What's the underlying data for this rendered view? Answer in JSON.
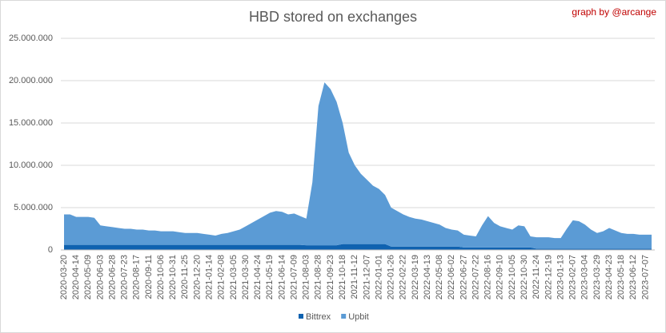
{
  "chart_data": {
    "type": "stacked_area",
    "title": "HBD stored on exchanges",
    "annotation": "graph by @arcange",
    "categories": [
      "2020-03-20",
      null,
      "2020-04-14",
      null,
      "2020-05-09",
      null,
      "2020-06-03",
      null,
      "2020-06-28",
      null,
      "2020-07-23",
      null,
      "2020-08-17",
      null,
      "2020-09-11",
      null,
      "2020-10-06",
      null,
      "2020-10-31",
      null,
      "2020-11-25",
      null,
      "2020-12-20",
      null,
      "2021-01-14",
      null,
      "2021-02-08",
      null,
      "2021-03-05",
      null,
      "2021-03-30",
      null,
      "2021-04-24",
      null,
      "2021-05-19",
      null,
      "2021-06-14",
      null,
      "2021-07-09",
      null,
      "2021-08-03",
      null,
      "2021-08-28",
      null,
      "2021-09-23",
      null,
      "2021-10-18",
      null,
      "2021-11-12",
      null,
      "2021-12-07",
      null,
      "2022-01-01",
      null,
      "2022-01-26",
      null,
      "2022-02-22",
      null,
      "2022-03-19",
      null,
      "2022-04-13",
      null,
      "2022-05-08",
      null,
      "2022-06-02",
      null,
      "2022-06-27",
      null,
      "2022-07-22",
      null,
      "2022-08-16",
      null,
      "2022-09-10",
      null,
      "2022-10-05",
      null,
      "2022-10-30",
      null,
      "2022-11-24",
      null,
      "2022-12-19",
      null,
      "2023-01-13",
      null,
      "2023-02-07",
      null,
      "2023-03-04",
      null,
      "2023-03-29",
      null,
      "2023-04-23",
      null,
      "2023-05-18",
      null,
      "2023-06-12",
      null,
      "2023-07-07",
      null
    ],
    "series": [
      {
        "name": "Bittrex",
        "color": "#0f62b0",
        "values": [
          600000,
          600000,
          600000,
          600000,
          600000,
          600000,
          600000,
          600000,
          600000,
          600000,
          600000,
          600000,
          600000,
          600000,
          600000,
          600000,
          600000,
          600000,
          600000,
          600000,
          600000,
          600000,
          600000,
          600000,
          600000,
          600000,
          600000,
          600000,
          600000,
          600000,
          600000,
          600000,
          600000,
          600000,
          600000,
          600000,
          600000,
          600000,
          600000,
          600000,
          550000,
          550000,
          550000,
          550000,
          550000,
          550000,
          700000,
          700000,
          700000,
          700000,
          700000,
          700000,
          700000,
          700000,
          400000,
          400000,
          400000,
          400000,
          400000,
          400000,
          400000,
          400000,
          400000,
          400000,
          400000,
          400000,
          300000,
          300000,
          300000,
          300000,
          300000,
          300000,
          300000,
          300000,
          300000,
          300000,
          300000,
          300000,
          150000,
          150000,
          150000,
          150000,
          150000,
          150000,
          150000,
          150000,
          150000,
          150000,
          150000,
          150000,
          150000,
          150000,
          150000,
          150000,
          150000,
          150000,
          150000,
          150000
        ]
      },
      {
        "name": "Upbit",
        "color": "#5b9bd5",
        "values": [
          3600000,
          3600000,
          3300000,
          3300000,
          3300000,
          3200000,
          2300000,
          2200000,
          2100000,
          2000000,
          1900000,
          1900000,
          1800000,
          1800000,
          1700000,
          1700000,
          1600000,
          1600000,
          1600000,
          1500000,
          1400000,
          1400000,
          1400000,
          1300000,
          1200000,
          1100000,
          1300000,
          1400000,
          1600000,
          1800000,
          2200000,
          2600000,
          3000000,
          3400000,
          3800000,
          4000000,
          3900000,
          3600000,
          3700000,
          3400000,
          3150000,
          7450000,
          16450000,
          19250000,
          18450000,
          16950000,
          14300000,
          10800000,
          9300000,
          8300000,
          7600000,
          6900000,
          6500000,
          5800000,
          4600000,
          4200000,
          3800000,
          3500000,
          3300000,
          3200000,
          3000000,
          2800000,
          2600000,
          2200000,
          2000000,
          1900000,
          1500000,
          1400000,
          1300000,
          2600000,
          3700000,
          2900000,
          2500000,
          2300000,
          2100000,
          2600000,
          2500000,
          1300000,
          1350000,
          1350000,
          1350000,
          1250000,
          1250000,
          2350000,
          3350000,
          3250000,
          2850000,
          2250000,
          1850000,
          2050000,
          2450000,
          2150000,
          1850000,
          1750000,
          1750000,
          1650000,
          1650000,
          1650000
        ]
      }
    ],
    "ylim": [
      0,
      25000000
    ],
    "yticks": [
      0,
      {
        "value": 5000000,
        "label": "5.000.000"
      },
      {
        "value": 10000000,
        "label": "10.000.000"
      },
      {
        "value": 15000000,
        "label": "15.000.000"
      },
      {
        "value": 20000000,
        "label": "20.000.000"
      },
      {
        "value": 25000000,
        "label": "25.000.000"
      }
    ],
    "grid": true,
    "legend": "bottom"
  }
}
